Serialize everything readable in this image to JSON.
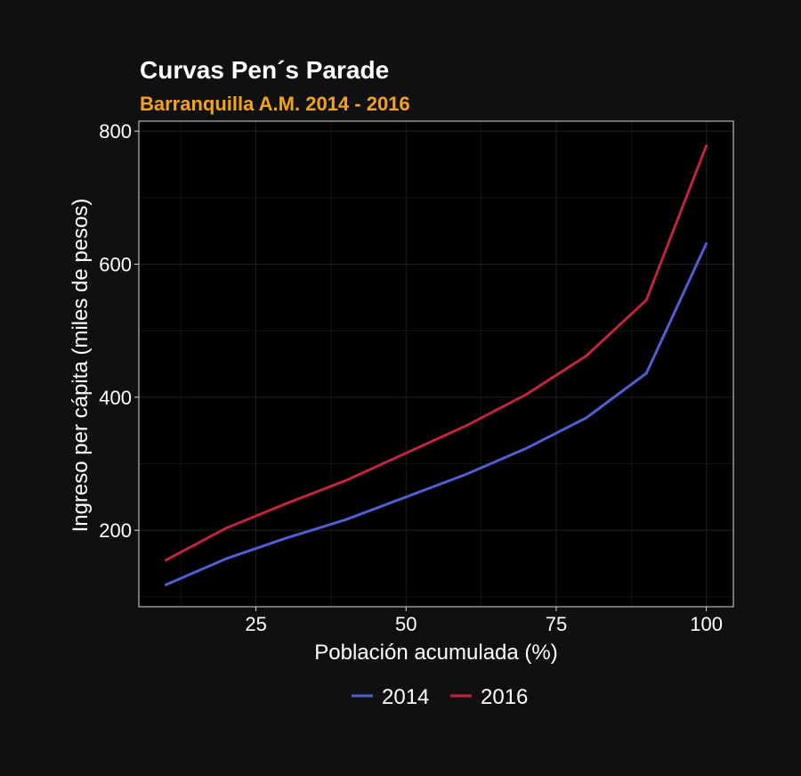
{
  "chart_data": {
    "type": "line",
    "title": "Curvas Pen´s Parade",
    "subtitle": "Barranquilla A.M. 2014 - 2016",
    "xlabel": "Población acumulada (%)",
    "ylabel": "Ingreso per cápita (miles de pesos)",
    "x": [
      10,
      20,
      30,
      40,
      50,
      60,
      70,
      80,
      90,
      100
    ],
    "xlim": [
      5.5,
      104.5
    ],
    "ylim": [
      85,
      815
    ],
    "x_ticks": [
      25,
      50,
      75,
      100
    ],
    "y_ticks": [
      200,
      400,
      600,
      800
    ],
    "grid": true,
    "legend_position": "bottom",
    "series": [
      {
        "name": "2014",
        "color": "#4f5fd0",
        "values": [
          118,
          157,
          188,
          216,
          250,
          284,
          323,
          369,
          436,
          631
        ]
      },
      {
        "name": "2016",
        "color": "#c0243f",
        "values": [
          155,
          203,
          240,
          275,
          316,
          357,
          404,
          462,
          546,
          778
        ]
      }
    ],
    "colors": {
      "background": "#101010",
      "panel": "#000000",
      "grid": "#1c1c1c",
      "panel_border": "#d8d8d8",
      "title": "#ffffff",
      "subtitle": "#f5a316",
      "text": "#ffffff"
    }
  }
}
